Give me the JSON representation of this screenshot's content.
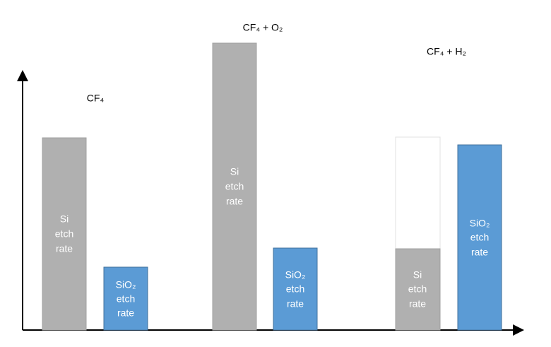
{
  "groups": [
    {
      "label": "CF₄",
      "bars": [
        {
          "lines": [
            "Si",
            "etch",
            "rate"
          ]
        },
        {
          "lines": [
            "SiO₂",
            "etch",
            "rate"
          ]
        }
      ]
    },
    {
      "label": "CF₄ + O₂",
      "bars": [
        {
          "lines": [
            "Si",
            "etch",
            "rate"
          ]
        },
        {
          "lines": [
            "SiO₂",
            "etch",
            "rate"
          ]
        }
      ]
    },
    {
      "label": "CF₄ + H₂",
      "bars": [
        {
          "lines": [
            "Si",
            "etch",
            "rate"
          ]
        },
        {
          "lines": [
            "SiO₂",
            "etch",
            "rate"
          ]
        }
      ]
    }
  ]
}
